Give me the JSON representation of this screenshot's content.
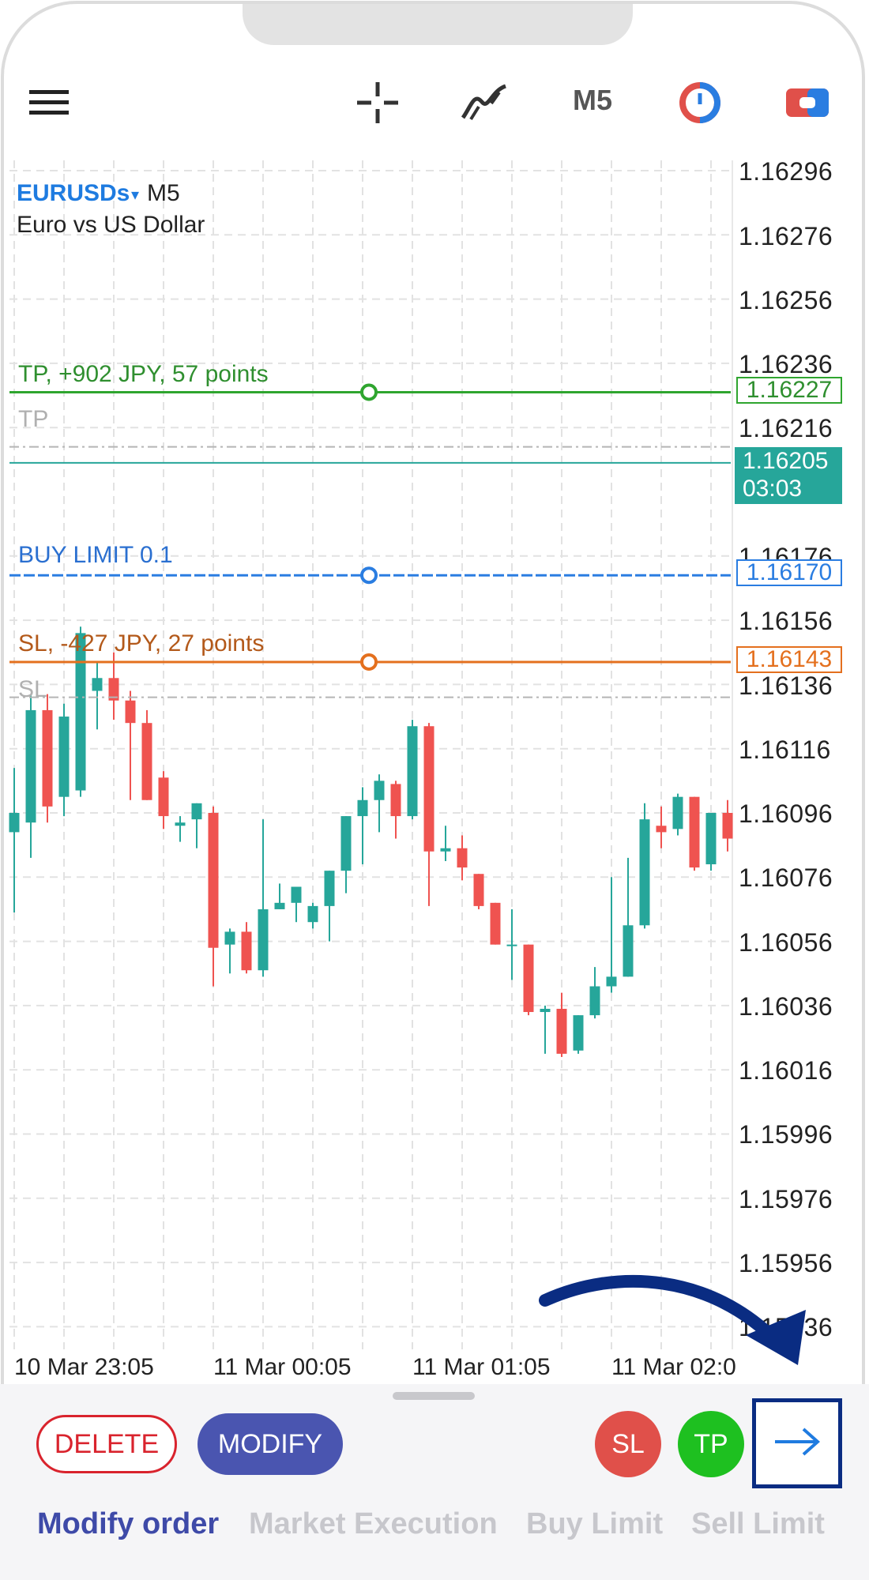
{
  "toolbar": {
    "menu_icon": "hamburger-menu-icon",
    "crosshair_icon": "crosshair-icon",
    "indicators_icon": "indicators-icon",
    "timeframe": "M5",
    "timer_icon": "one-click-timer-icon",
    "trade_icon": "trade-icon"
  },
  "symbol": {
    "name": "EURUSDs",
    "caret": "▾",
    "timeframe": "M5",
    "description": "Euro vs US Dollar"
  },
  "chart_data": {
    "type": "candlestick",
    "symbol": "EURUSDs",
    "timeframe": "M5",
    "y_ticks": [
      "1.16296",
      "1.16276",
      "1.16256",
      "1.16236",
      "1.16216",
      "1.16176",
      "1.16156",
      "1.16136",
      "1.16116",
      "1.16096",
      "1.16076",
      "1.16056",
      "1.16036",
      "1.16016",
      "1.15996",
      "1.15976",
      "1.15956",
      "1.15936"
    ],
    "x_ticks": [
      "10 Mar 23:05",
      "11 Mar 00:05",
      "11 Mar 01:05",
      "11 Mar 02:0"
    ],
    "ylim": [
      1.15925,
      1.16306
    ],
    "grid": true,
    "candles": [
      {
        "o": 1.1609,
        "h": 1.1611,
        "l": 1.16065,
        "c": 1.16096
      },
      {
        "o": 1.16093,
        "h": 1.16133,
        "l": 1.16082,
        "c": 1.16128
      },
      {
        "o": 1.16128,
        "h": 1.16133,
        "l": 1.16093,
        "c": 1.16098
      },
      {
        "o": 1.16101,
        "h": 1.1613,
        "l": 1.16095,
        "c": 1.16126
      },
      {
        "o": 1.16103,
        "h": 1.16154,
        "l": 1.16101,
        "c": 1.16152
      },
      {
        "o": 1.16134,
        "h": 1.16143,
        "l": 1.16122,
        "c": 1.16138
      },
      {
        "o": 1.16138,
        "h": 1.16146,
        "l": 1.16125,
        "c": 1.16131
      },
      {
        "o": 1.16131,
        "h": 1.16134,
        "l": 1.161,
        "c": 1.16124
      },
      {
        "o": 1.16124,
        "h": 1.16128,
        "l": 1.161,
        "c": 1.161
      },
      {
        "o": 1.16107,
        "h": 1.16109,
        "l": 1.16091,
        "c": 1.16095
      },
      {
        "o": 1.16092,
        "h": 1.16095,
        "l": 1.16087,
        "c": 1.16093
      },
      {
        "o": 1.16094,
        "h": 1.16099,
        "l": 1.16085,
        "c": 1.16099
      },
      {
        "o": 1.16096,
        "h": 1.16098,
        "l": 1.16042,
        "c": 1.16054
      },
      {
        "o": 1.16055,
        "h": 1.1606,
        "l": 1.16046,
        "c": 1.16059
      },
      {
        "o": 1.16059,
        "h": 1.16062,
        "l": 1.16046,
        "c": 1.16047
      },
      {
        "o": 1.16047,
        "h": 1.16094,
        "l": 1.16045,
        "c": 1.16066
      },
      {
        "o": 1.16066,
        "h": 1.16074,
        "l": 1.16066,
        "c": 1.16068
      },
      {
        "o": 1.16068,
        "h": 1.16073,
        "l": 1.16062,
        "c": 1.16073
      },
      {
        "o": 1.16062,
        "h": 1.16068,
        "l": 1.1606,
        "c": 1.16067
      },
      {
        "o": 1.16067,
        "h": 1.16078,
        "l": 1.16056,
        "c": 1.16078
      },
      {
        "o": 1.16078,
        "h": 1.16095,
        "l": 1.16071,
        "c": 1.16095
      },
      {
        "o": 1.16095,
        "h": 1.16104,
        "l": 1.1608,
        "c": 1.161
      },
      {
        "o": 1.161,
        "h": 1.16108,
        "l": 1.1609,
        "c": 1.16106
      },
      {
        "o": 1.16105,
        "h": 1.16106,
        "l": 1.16088,
        "c": 1.16095
      },
      {
        "o": 1.16095,
        "h": 1.16125,
        "l": 1.16094,
        "c": 1.16123
      },
      {
        "o": 1.16123,
        "h": 1.16124,
        "l": 1.16067,
        "c": 1.16084
      },
      {
        "o": 1.16084,
        "h": 1.16092,
        "l": 1.16081,
        "c": 1.16085
      },
      {
        "o": 1.16085,
        "h": 1.16089,
        "l": 1.16075,
        "c": 1.16079
      },
      {
        "o": 1.16077,
        "h": 1.16077,
        "l": 1.16066,
        "c": 1.16067
      },
      {
        "o": 1.16068,
        "h": 1.16068,
        "l": 1.16055,
        "c": 1.16055
      },
      {
        "o": 1.16055,
        "h": 1.16066,
        "l": 1.16044,
        "c": 1.16055
      },
      {
        "o": 1.16055,
        "h": 1.16055,
        "l": 1.16033,
        "c": 1.16034
      },
      {
        "o": 1.16034,
        "h": 1.16036,
        "l": 1.16021,
        "c": 1.16035
      },
      {
        "o": 1.16035,
        "h": 1.1604,
        "l": 1.1602,
        "c": 1.16021
      },
      {
        "o": 1.16022,
        "h": 1.16033,
        "l": 1.16021,
        "c": 1.16033
      },
      {
        "o": 1.16033,
        "h": 1.16048,
        "l": 1.16032,
        "c": 1.16042
      },
      {
        "o": 1.16042,
        "h": 1.16076,
        "l": 1.1604,
        "c": 1.16045
      },
      {
        "o": 1.16045,
        "h": 1.16082,
        "l": 1.16045,
        "c": 1.16061
      },
      {
        "o": 1.16061,
        "h": 1.16099,
        "l": 1.1606,
        "c": 1.16094
      },
      {
        "o": 1.16092,
        "h": 1.16098,
        "l": 1.16085,
        "c": 1.1609
      },
      {
        "o": 1.16091,
        "h": 1.16102,
        "l": 1.16089,
        "c": 1.16101
      },
      {
        "o": 1.16101,
        "h": 1.16101,
        "l": 1.16078,
        "c": 1.16079
      },
      {
        "o": 1.1608,
        "h": 1.16096,
        "l": 1.16078,
        "c": 1.16096
      },
      {
        "o": 1.16096,
        "h": 1.161,
        "l": 1.16084,
        "c": 1.16088
      }
    ],
    "lines": [
      {
        "name": "TP",
        "price": 1.16227,
        "color": "#2fa52f"
      },
      {
        "name": "current",
        "price": 1.16205,
        "color": "#26a69a"
      },
      {
        "name": "BUY LIMIT",
        "price": 1.1617,
        "color": "#2a7de1"
      },
      {
        "name": "SL",
        "price": 1.16143,
        "color": "#e4701e"
      }
    ]
  },
  "chart_labels": {
    "tp_line": "TP, +902 JPY, 57 points",
    "tp_ghost": "TP",
    "buy_limit": "BUY LIMIT 0.1",
    "sl_line": "SL, -427 JPY, 27 points",
    "sl_ghost": "SL"
  },
  "price_tags": {
    "tp": "1.16227",
    "bid": "1.16205",
    "countdown": "03:03",
    "buy_limit": "1.16170",
    "sl": "1.16143"
  },
  "colors": {
    "bull": "#26a69a",
    "bear": "#ef5350",
    "tp": "#2fa52f",
    "sl": "#e4701e",
    "order": "#2a7de1",
    "accent": "#4a55b0",
    "highlight": "#0a2c82"
  },
  "actions": {
    "delete": "DELETE",
    "modify": "MODIFY",
    "sl": "SL",
    "tp": "TP",
    "next_icon": "arrow-right-icon"
  },
  "tabs": [
    {
      "label": "Modify order",
      "active": true
    },
    {
      "label": "Market Execution",
      "active": false
    },
    {
      "label": "Buy Limit",
      "active": false
    },
    {
      "label": "Sell Limit",
      "active": false
    }
  ]
}
